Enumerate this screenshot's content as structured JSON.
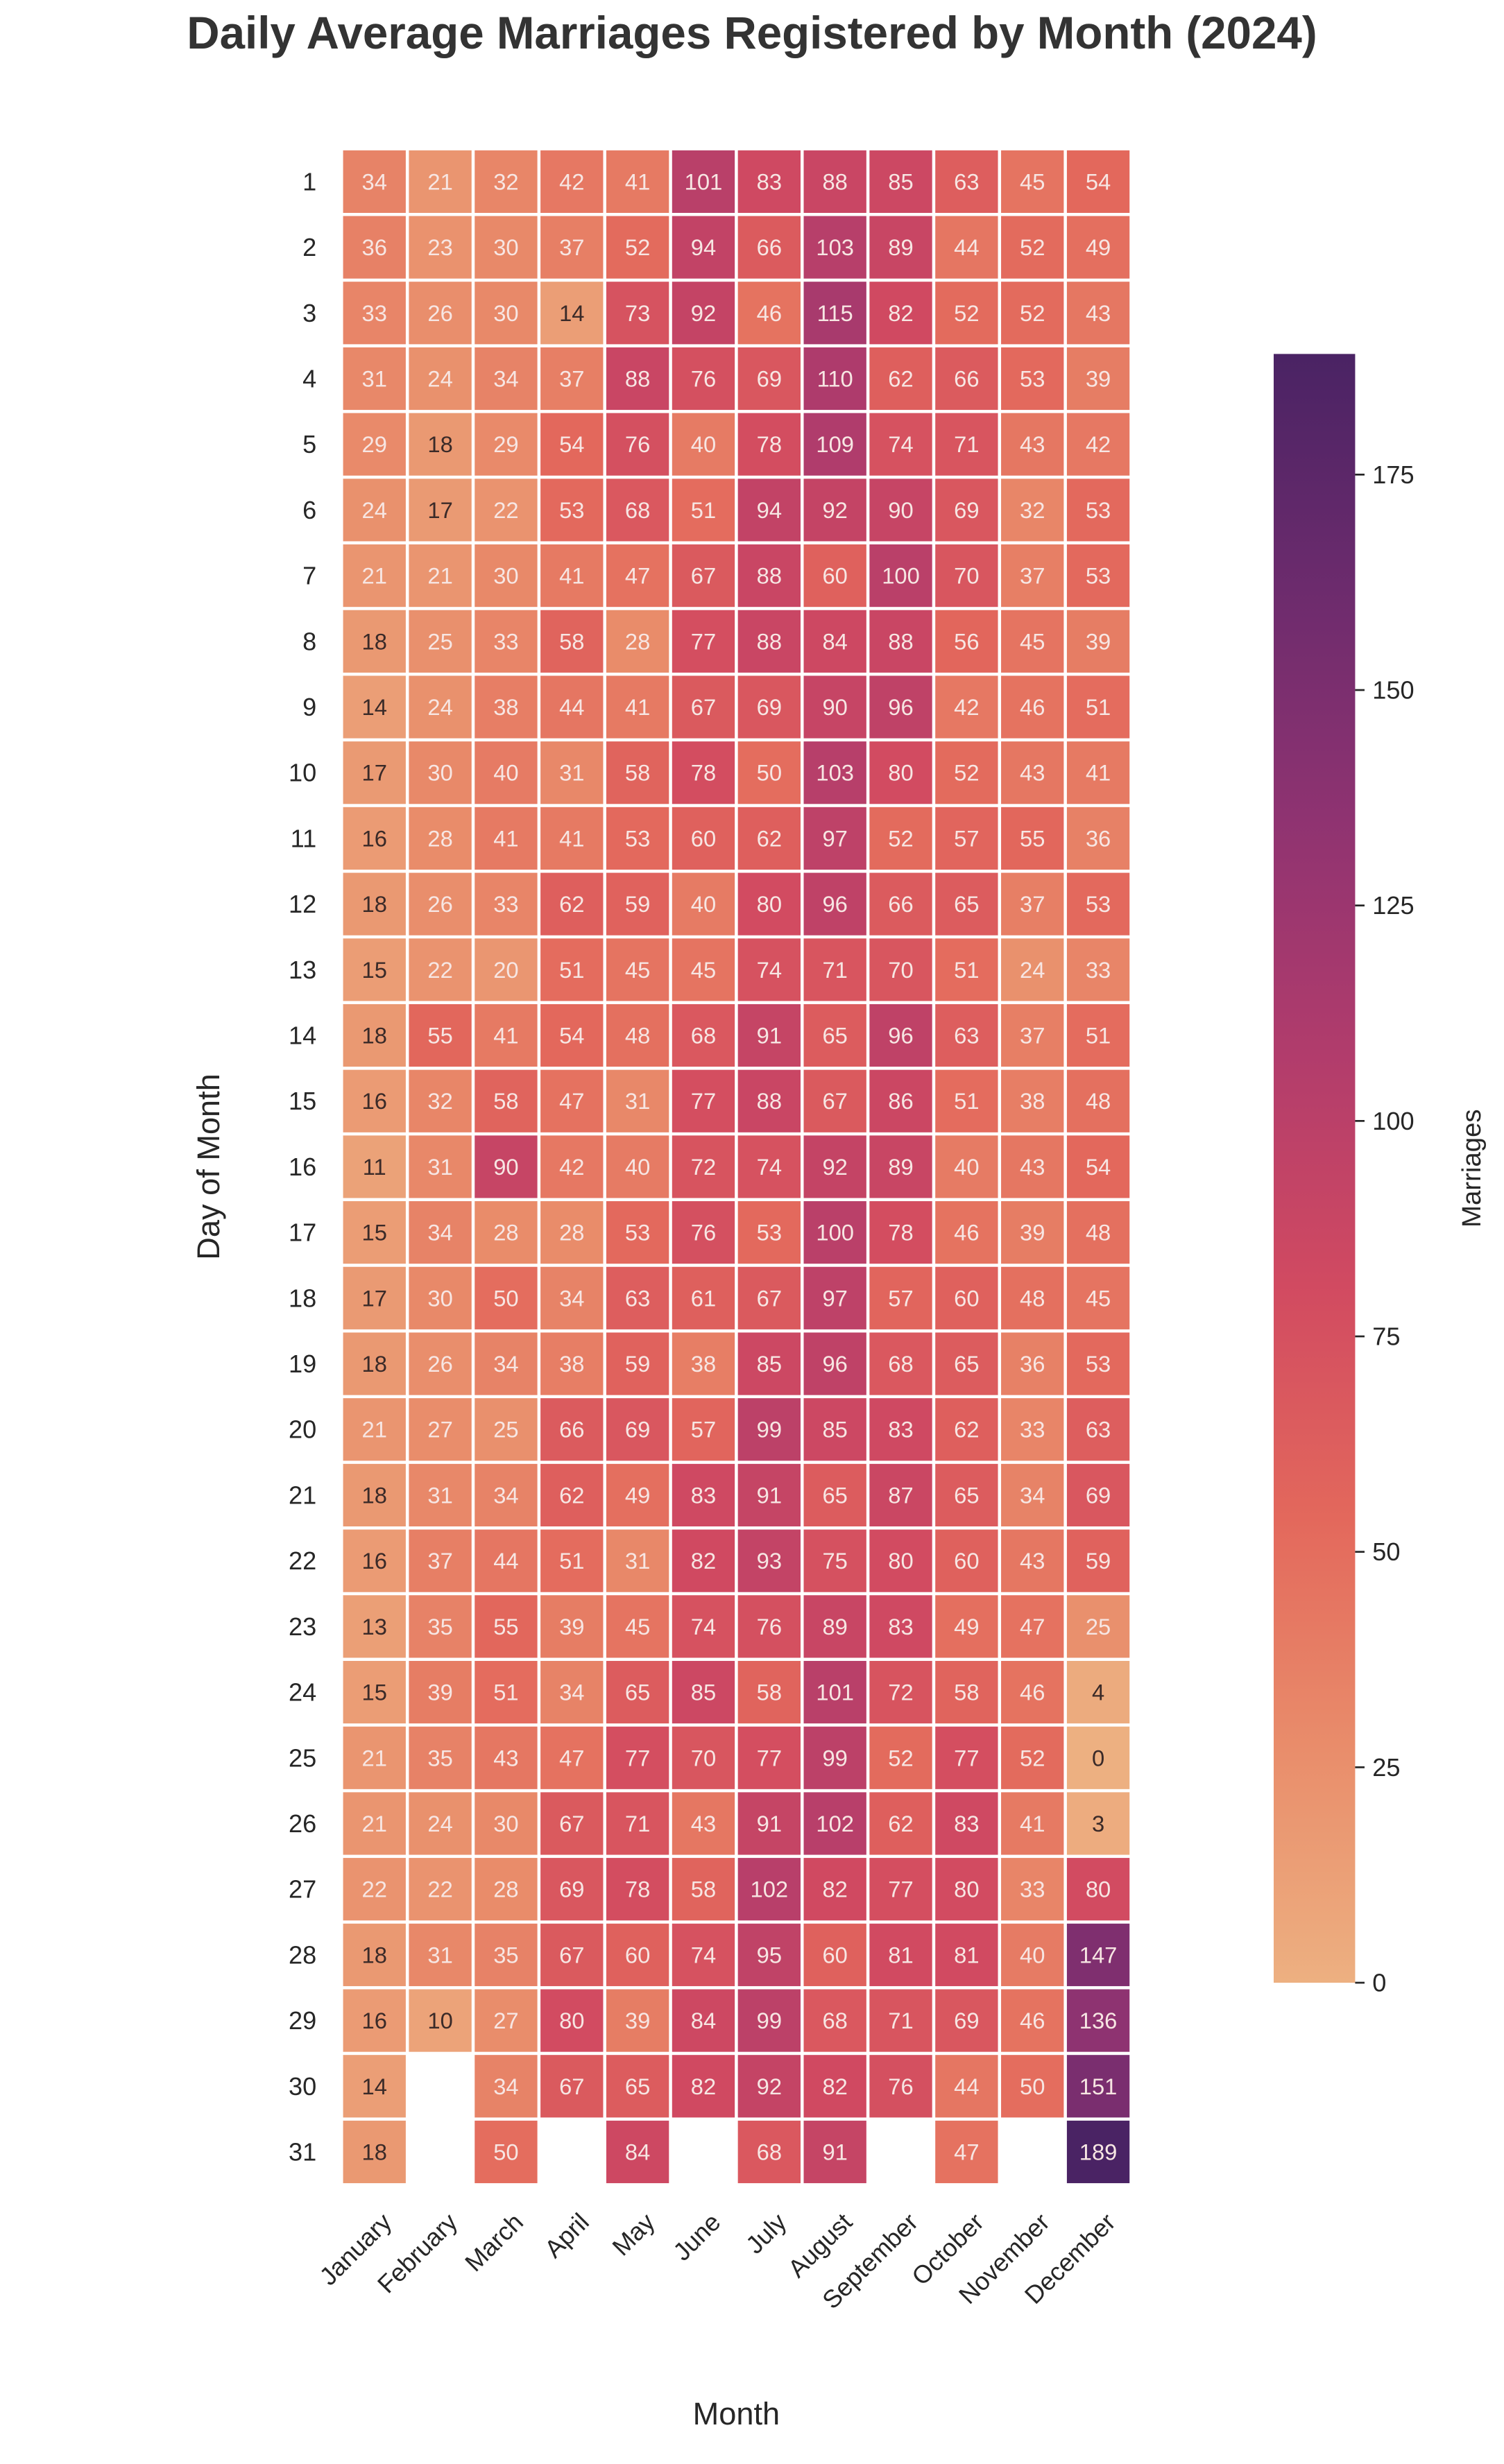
{
  "chart_data": {
    "type": "heatmap",
    "title": "Daily Average Marriages Registered by Month (2024)",
    "xlabel": "Month",
    "ylabel": "Day of Month",
    "x_categories": [
      "January",
      "February",
      "March",
      "April",
      "May",
      "June",
      "July",
      "August",
      "September",
      "October",
      "November",
      "December"
    ],
    "y_categories": [
      1,
      2,
      3,
      4,
      5,
      6,
      7,
      8,
      9,
      10,
      11,
      12,
      13,
      14,
      15,
      16,
      17,
      18,
      19,
      20,
      21,
      22,
      23,
      24,
      25,
      26,
      27,
      28,
      29,
      30,
      31
    ],
    "values": [
      [
        34,
        21,
        32,
        42,
        41,
        101,
        83,
        88,
        85,
        63,
        45,
        54
      ],
      [
        36,
        23,
        30,
        37,
        52,
        94,
        66,
        103,
        89,
        44,
        52,
        49
      ],
      [
        33,
        26,
        30,
        14,
        73,
        92,
        46,
        115,
        82,
        52,
        52,
        43
      ],
      [
        31,
        24,
        34,
        37,
        88,
        76,
        69,
        110,
        62,
        66,
        53,
        39
      ],
      [
        29,
        18,
        29,
        54,
        76,
        40,
        78,
        109,
        74,
        71,
        43,
        42
      ],
      [
        24,
        17,
        22,
        53,
        68,
        51,
        94,
        92,
        90,
        69,
        32,
        53
      ],
      [
        21,
        21,
        30,
        41,
        47,
        67,
        88,
        60,
        100,
        70,
        37,
        53
      ],
      [
        18,
        25,
        33,
        58,
        28,
        77,
        88,
        84,
        88,
        56,
        45,
        39
      ],
      [
        14,
        24,
        38,
        44,
        41,
        67,
        69,
        90,
        96,
        42,
        46,
        51
      ],
      [
        17,
        30,
        40,
        31,
        58,
        78,
        50,
        103,
        80,
        52,
        43,
        41
      ],
      [
        16,
        28,
        41,
        41,
        53,
        60,
        62,
        97,
        52,
        57,
        55,
        36
      ],
      [
        18,
        26,
        33,
        62,
        59,
        40,
        80,
        96,
        66,
        65,
        37,
        53
      ],
      [
        15,
        22,
        20,
        51,
        45,
        45,
        74,
        71,
        70,
        51,
        24,
        33
      ],
      [
        18,
        55,
        41,
        54,
        48,
        68,
        91,
        65,
        96,
        63,
        37,
        51
      ],
      [
        16,
        32,
        58,
        47,
        31,
        77,
        88,
        67,
        86,
        51,
        38,
        48
      ],
      [
        11,
        31,
        90,
        42,
        40,
        72,
        74,
        92,
        89,
        40,
        43,
        54
      ],
      [
        15,
        34,
        28,
        28,
        53,
        76,
        53,
        100,
        78,
        46,
        39,
        48
      ],
      [
        17,
        30,
        50,
        34,
        63,
        61,
        67,
        97,
        57,
        60,
        48,
        45
      ],
      [
        18,
        26,
        34,
        38,
        59,
        38,
        85,
        96,
        68,
        65,
        36,
        53
      ],
      [
        21,
        27,
        25,
        66,
        69,
        57,
        99,
        85,
        83,
        62,
        33,
        63
      ],
      [
        18,
        31,
        34,
        62,
        49,
        83,
        91,
        65,
        87,
        65,
        34,
        69
      ],
      [
        16,
        37,
        44,
        51,
        31,
        82,
        93,
        75,
        80,
        60,
        43,
        59
      ],
      [
        13,
        35,
        55,
        39,
        45,
        74,
        76,
        89,
        83,
        49,
        47,
        25
      ],
      [
        15,
        39,
        51,
        34,
        65,
        85,
        58,
        101,
        72,
        58,
        46,
        4
      ],
      [
        21,
        35,
        43,
        47,
        77,
        70,
        77,
        99,
        52,
        77,
        52,
        0
      ],
      [
        21,
        24,
        30,
        67,
        71,
        43,
        91,
        102,
        62,
        83,
        41,
        3
      ],
      [
        22,
        22,
        28,
        69,
        78,
        58,
        102,
        82,
        77,
        80,
        33,
        80
      ],
      [
        18,
        31,
        35,
        67,
        60,
        74,
        95,
        60,
        81,
        81,
        40,
        147
      ],
      [
        16,
        10,
        27,
        80,
        39,
        84,
        99,
        68,
        71,
        69,
        46,
        136
      ],
      [
        14,
        null,
        34,
        67,
        65,
        82,
        92,
        82,
        76,
        44,
        50,
        151
      ],
      [
        18,
        null,
        50,
        null,
        84,
        null,
        68,
        91,
        null,
        47,
        null,
        189
      ]
    ],
    "colorbar": {
      "label": "Marriages",
      "range": [
        0,
        189
      ],
      "ticks": [
        0,
        25,
        50,
        75,
        100,
        125,
        150,
        175
      ],
      "colormap": "flare",
      "colormap_stops": [
        "#edb081",
        "#e98d6b",
        "#e3685c",
        "#d14a61",
        "#b13c6c",
        "#8f3371",
        "#6c2b6d",
        "#4a2364"
      ]
    },
    "annotations": true,
    "annotation_dark_text_color": "#3a2a28",
    "annotation_light_text_color": "#f7e6e3",
    "grid": false
  }
}
